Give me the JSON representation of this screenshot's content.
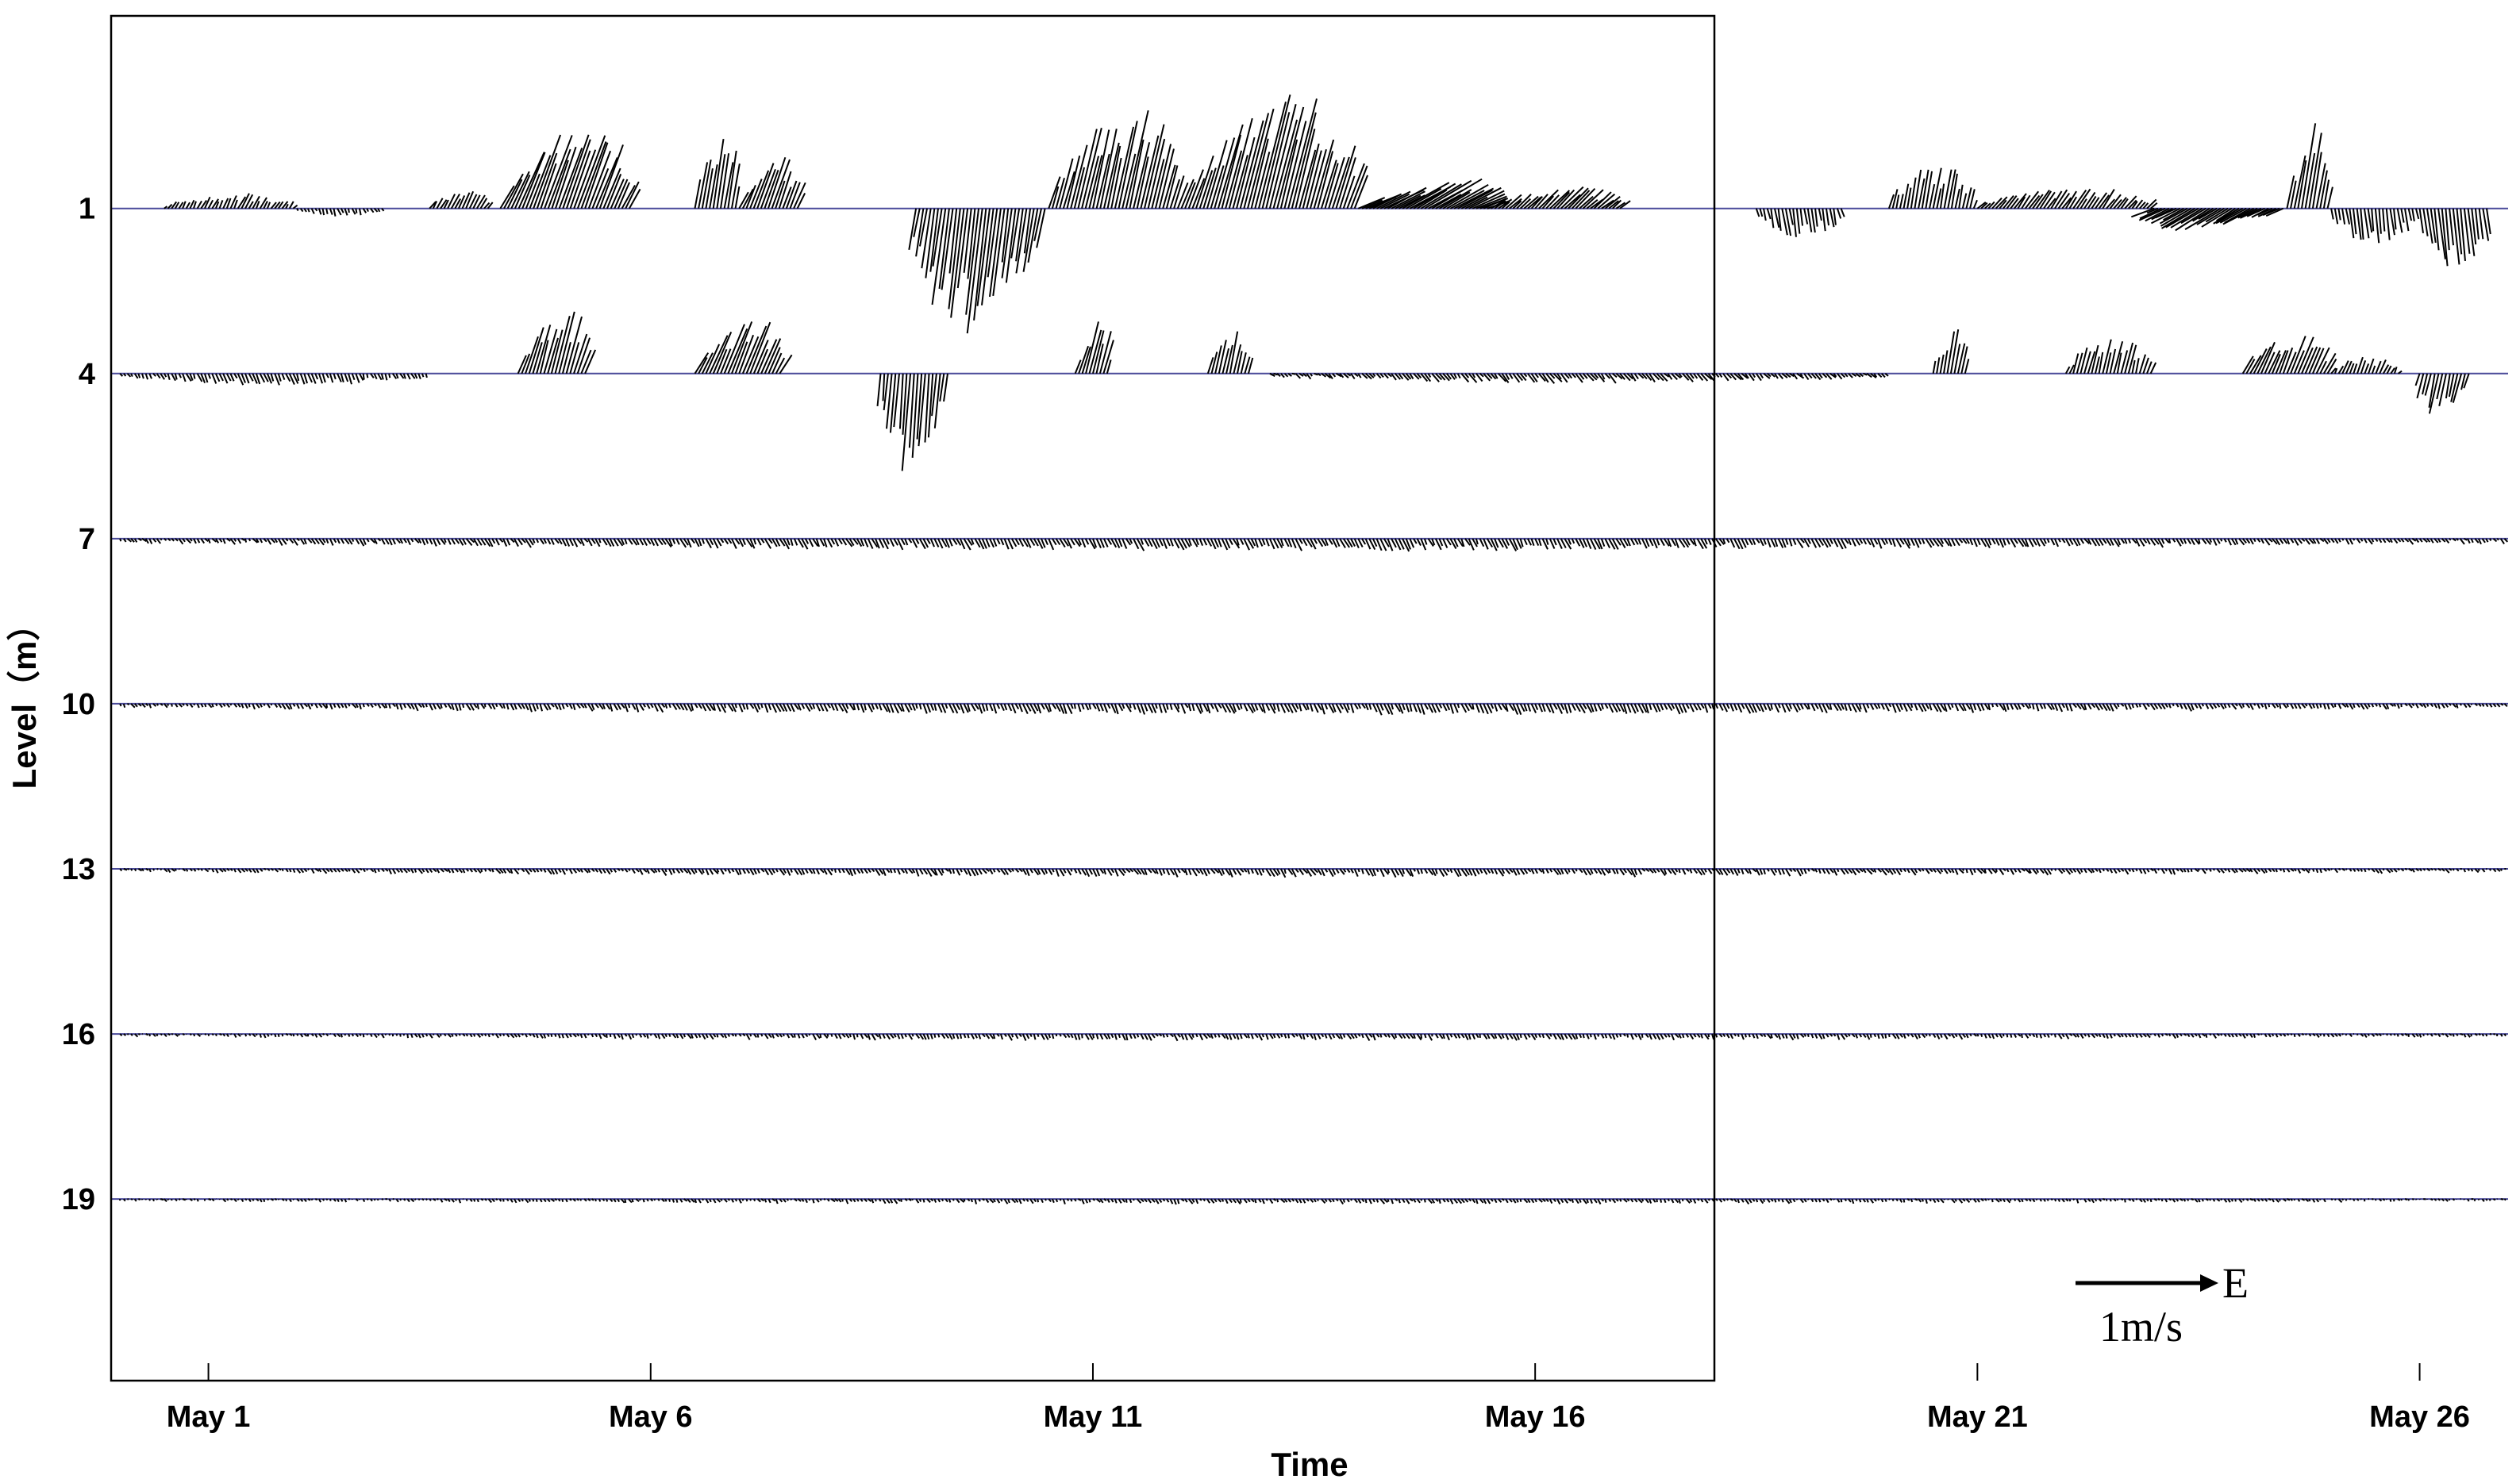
{
  "chart_data": {
    "type": "stick-vector",
    "title": "",
    "xlabel": "Time",
    "ylabel": "Level（m）",
    "x_unit": "day of May",
    "xlim": [
      -0.1,
      27.0
    ],
    "ylim": [
      22.3,
      -2.5
    ],
    "x_ticks": [
      {
        "value": 1,
        "label": "May 1"
      },
      {
        "value": 6,
        "label": "May 6"
      },
      {
        "value": 11,
        "label": "May 11"
      },
      {
        "value": 16,
        "label": "May 16"
      },
      {
        "value": 21,
        "label": "May 21"
      },
      {
        "value": 26,
        "label": "May 26"
      }
    ],
    "levels": [
      1,
      4,
      7,
      10,
      13,
      16,
      19
    ],
    "level_labels": [
      "1",
      "4",
      "7",
      "10",
      "13",
      "16",
      "19"
    ],
    "scale_arrow": {
      "label": "1m/s",
      "direction_label": "E",
      "magnitude": 1.0
    },
    "series": [
      {
        "level": 1,
        "segments": [
          {
            "from": 0.5,
            "to": 2.0,
            "east": 0.05,
            "north": 0.1
          },
          {
            "from": 2.0,
            "to": 3.0,
            "east": 0.02,
            "north": -0.05
          },
          {
            "from": 3.5,
            "to": 4.2,
            "east": 0.06,
            "north": 0.12
          },
          {
            "from": 4.3,
            "to": 5.8,
            "east": 0.22,
            "north": 0.62
          },
          {
            "from": 6.5,
            "to": 7.0,
            "east": 0.08,
            "north": 0.55
          },
          {
            "from": 7.0,
            "to": 7.7,
            "east": 0.12,
            "north": 0.35
          },
          {
            "from": 9.0,
            "to": 10.5,
            "east": -0.1,
            "north": -0.85
          },
          {
            "from": 10.5,
            "to": 12.0,
            "east": 0.15,
            "north": 0.7
          },
          {
            "from": 12.0,
            "to": 14.0,
            "east": 0.2,
            "north": 0.8
          },
          {
            "from": 14.0,
            "to": 15.5,
            "east": 0.35,
            "north": 0.2
          },
          {
            "from": 15.5,
            "to": 17.0,
            "east": 0.15,
            "north": 0.15
          },
          {
            "from": 18.5,
            "to": 19.5,
            "east": 0.03,
            "north": -0.2
          },
          {
            "from": 20.0,
            "to": 21.0,
            "east": 0.05,
            "north": 0.3
          },
          {
            "from": 21.0,
            "to": 23.0,
            "east": 0.1,
            "north": 0.15
          },
          {
            "from": 23.0,
            "to": 24.5,
            "east": -0.25,
            "north": -0.15
          },
          {
            "from": 24.5,
            "to": 25.0,
            "east": 0.1,
            "north": 0.6
          },
          {
            "from": 25.0,
            "to": 26.0,
            "east": 0.03,
            "north": -0.25
          },
          {
            "from": 26.0,
            "to": 26.8,
            "east": 0.05,
            "north": -0.45
          }
        ]
      },
      {
        "level": 4,
        "segments": [
          {
            "from": 0.0,
            "to": 3.5,
            "east": 0.03,
            "north": -0.08
          },
          {
            "from": 4.5,
            "to": 5.3,
            "east": 0.12,
            "north": 0.45
          },
          {
            "from": 6.5,
            "to": 7.5,
            "east": 0.15,
            "north": 0.38
          },
          {
            "from": 8.6,
            "to": 9.4,
            "east": -0.05,
            "north": -0.7
          },
          {
            "from": 10.8,
            "to": 11.2,
            "east": 0.1,
            "north": 0.4
          },
          {
            "from": 12.3,
            "to": 12.8,
            "east": 0.06,
            "north": 0.3
          },
          {
            "from": 13.0,
            "to": 20.0,
            "east": 0.05,
            "north": -0.06
          },
          {
            "from": 20.5,
            "to": 20.9,
            "east": 0.05,
            "north": 0.3
          },
          {
            "from": 22.0,
            "to": 23.0,
            "east": 0.06,
            "north": 0.25
          },
          {
            "from": 24.0,
            "to": 25.0,
            "east": 0.12,
            "north": 0.3
          },
          {
            "from": 25.0,
            "to": 25.8,
            "east": 0.05,
            "north": 0.12
          },
          {
            "from": 26.0,
            "to": 26.6,
            "east": -0.06,
            "north": -0.3
          }
        ]
      },
      {
        "level": 7,
        "segments": [
          {
            "from": 0.0,
            "to": 27.0,
            "east": 0.04,
            "north": -0.08
          }
        ]
      },
      {
        "level": 10,
        "segments": [
          {
            "from": 0.0,
            "to": 27.0,
            "east": 0.03,
            "north": -0.07
          }
        ]
      },
      {
        "level": 13,
        "segments": [
          {
            "from": 0.0,
            "to": 27.0,
            "east": 0.03,
            "north": -0.05
          }
        ]
      },
      {
        "level": 16,
        "segments": [
          {
            "from": 0.0,
            "to": 27.0,
            "east": 0.02,
            "north": -0.04
          }
        ]
      },
      {
        "level": 19,
        "segments": [
          {
            "from": 0.0,
            "to": 27.0,
            "east": 0.02,
            "north": -0.03
          }
        ]
      }
    ]
  },
  "colors": {
    "sticks": "#000000",
    "baseline": "#4a4a9a",
    "frame": "#000000"
  }
}
